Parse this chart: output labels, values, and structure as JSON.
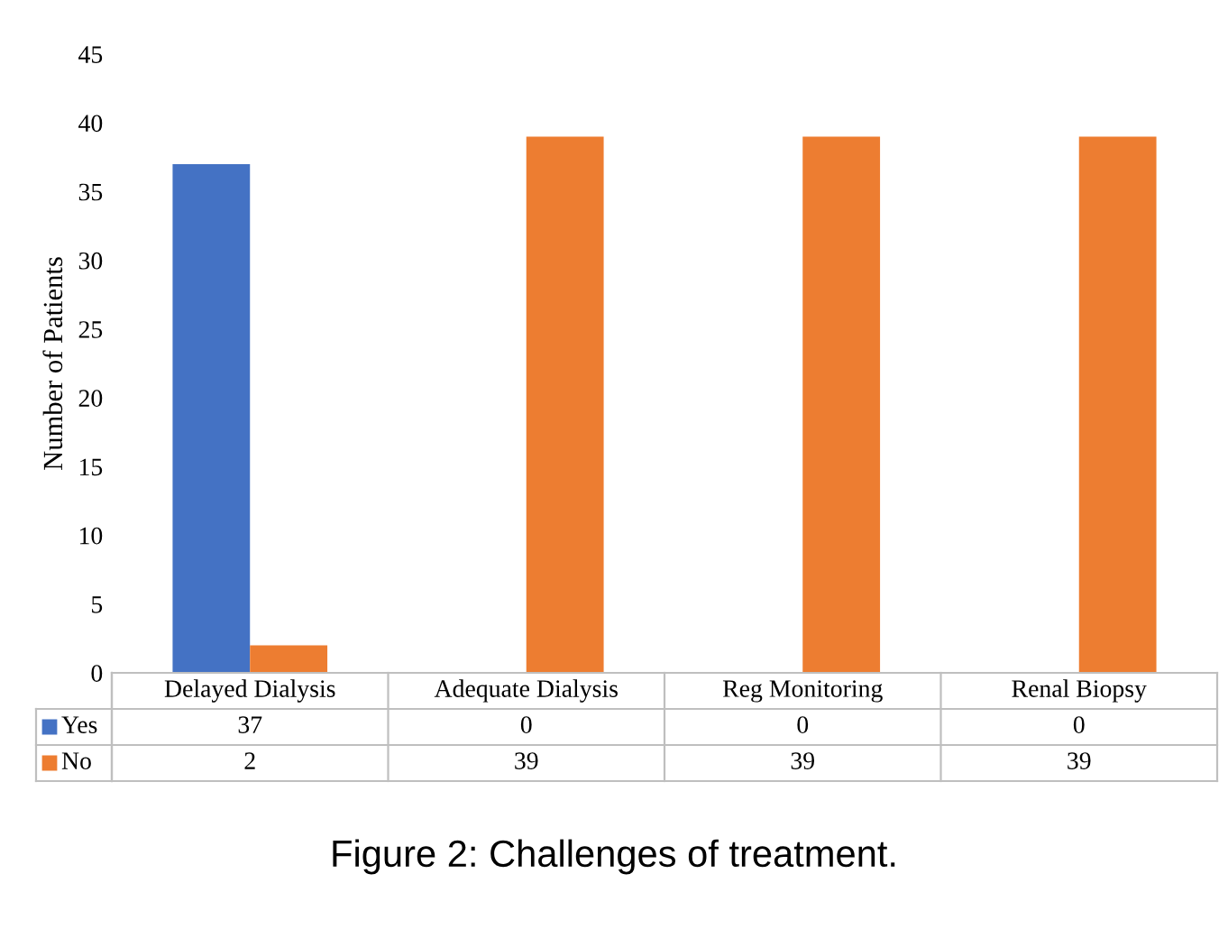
{
  "chart_data": {
    "type": "bar",
    "title": "Figure 2: Challenges of treatment.",
    "ylabel": "Number of Patients",
    "categories": [
      "Delayed Dialysis",
      "Adequate Dialysis",
      "Reg Monitoring",
      "Renal Biopsy"
    ],
    "series": [
      {
        "name": "Yes",
        "color": "#4472c4",
        "values": [
          37,
          0,
          0,
          0
        ]
      },
      {
        "name": "No",
        "color": "#ed7d31",
        "values": [
          2,
          39,
          39,
          39
        ]
      }
    ],
    "ylim": [
      0,
      45
    ],
    "yticks": [
      0,
      5,
      10,
      15,
      20,
      25,
      30,
      35,
      40,
      45
    ],
    "data_labels": true,
    "legend": "bottom"
  }
}
